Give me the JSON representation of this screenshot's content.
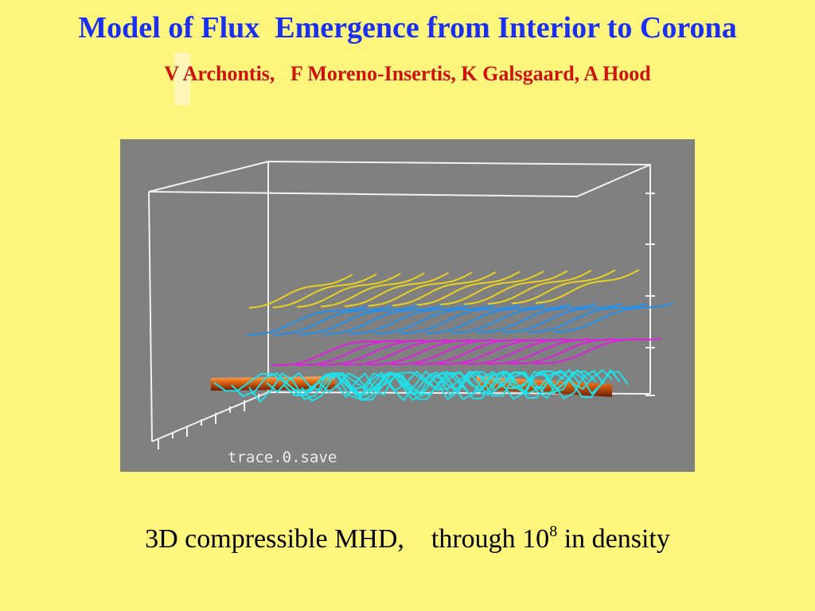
{
  "slide": {
    "title": "Model of Flux  Emergence from Interior to Corona",
    "authors": "V Archontis,   F Moreno-Insertis, K Galsgaard, A Hood",
    "figure_label": "trace.0.save",
    "caption_main": "3D compressible MHD,    through 10",
    "caption_exponent": "8",
    "caption_tail": " in density"
  },
  "colors": {
    "background": "#fdf57c",
    "title": "#1a2ff0",
    "authors": "#d0120e",
    "figure_bg": "#808080",
    "field_lines_top": "#e8d21e",
    "field_lines_upper": "#1e90f0",
    "field_lines_middle": "#e020e0",
    "field_lines_tube": "#1ee0e8",
    "flux_tube": "#e05a10"
  }
}
